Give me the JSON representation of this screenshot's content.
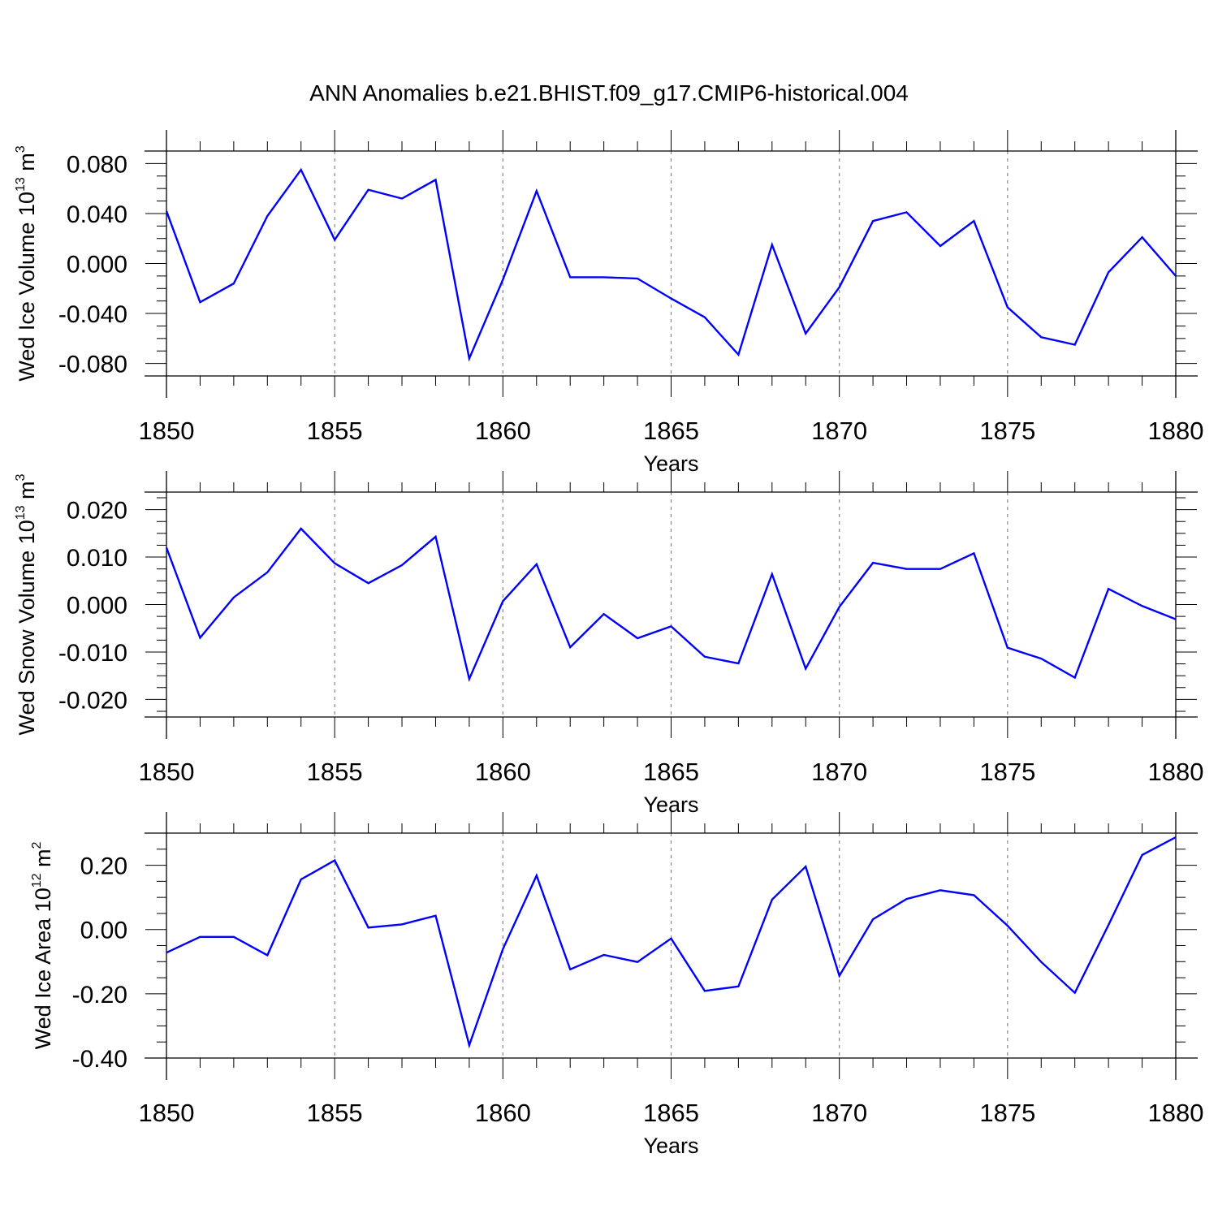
{
  "title": "ANN Anomalies b.e21.BHIST.f09_g17.CMIP6-historical.004",
  "colors": {
    "line": "#0000ff",
    "axis": "#000000",
    "grid": "#888888",
    "background": "#ffffff"
  },
  "chart_data": [
    {
      "type": "line",
      "title": "ANN Anomalies b.e21.BHIST.f09_g17.CMIP6-historical.004",
      "xlabel": "Years",
      "ylabel": {
        "base": "Wed Ice Volume 10",
        "exp": "13",
        "unit": " m",
        "unit_exp": "3"
      },
      "xlim": [
        1850,
        1880
      ],
      "ylim": [
        -0.09,
        0.09
      ],
      "xticks": [
        1850,
        1855,
        1860,
        1865,
        1870,
        1875,
        1880
      ],
      "xtick_labels": [
        "1850",
        "1855",
        "1860",
        "1865",
        "1870",
        "1875",
        "1880"
      ],
      "yticks": [
        -0.08,
        -0.04,
        0.0,
        0.04,
        0.08
      ],
      "ytick_labels": [
        "-0.080",
        "-0.040",
        "0.000",
        "0.040",
        "0.080"
      ],
      "yminor_step": 0.01,
      "grid": "vertical dashed at major x ticks",
      "series": [
        {
          "x": [
            1850,
            1851,
            1852,
            1853,
            1854,
            1855,
            1856,
            1857,
            1858,
            1859,
            1860,
            1861,
            1862,
            1863,
            1864,
            1865,
            1866,
            1867,
            1868,
            1869,
            1870,
            1871,
            1872,
            1873,
            1874,
            1875,
            1876,
            1877,
            1878,
            1879,
            1880
          ],
          "y": [
            0.042,
            -0.031,
            -0.016,
            0.038,
            0.075,
            0.019,
            0.059,
            0.052,
            0.067,
            -0.076,
            -0.013,
            0.058,
            -0.011,
            -0.011,
            -0.012,
            -0.028,
            -0.043,
            -0.073,
            0.015,
            -0.056,
            -0.019,
            0.034,
            0.041,
            0.014,
            0.034,
            -0.035,
            -0.059,
            -0.065,
            -0.007,
            0.021,
            -0.01
          ]
        }
      ]
    },
    {
      "type": "line",
      "xlabel": "Years",
      "ylabel": {
        "base": "Wed Snow Volume 10",
        "exp": "13",
        "unit": " m",
        "unit_exp": "3"
      },
      "xlim": [
        1850,
        1880
      ],
      "ylim": [
        -0.0237,
        0.0237
      ],
      "xticks": [
        1850,
        1855,
        1860,
        1865,
        1870,
        1875,
        1880
      ],
      "xtick_labels": [
        "1850",
        "1855",
        "1860",
        "1865",
        "1870",
        "1875",
        "1880"
      ],
      "yticks": [
        -0.02,
        -0.01,
        0.0,
        0.01,
        0.02
      ],
      "ytick_labels": [
        "-0.020",
        "-0.010",
        "0.000",
        "0.010",
        "0.020"
      ],
      "yminor_step": 0.0025,
      "grid": "vertical dashed at major x ticks",
      "series": [
        {
          "x": [
            1850,
            1851,
            1852,
            1853,
            1854,
            1855,
            1856,
            1857,
            1858,
            1859,
            1860,
            1861,
            1862,
            1863,
            1864,
            1865,
            1866,
            1867,
            1868,
            1869,
            1870,
            1871,
            1872,
            1873,
            1874,
            1875,
            1876,
            1877,
            1878,
            1879,
            1880
          ],
          "y": [
            0.012,
            -0.007,
            0.0015,
            0.0068,
            0.016,
            0.0087,
            0.0045,
            0.0083,
            0.0143,
            -0.0157,
            0.0007,
            0.0085,
            -0.009,
            -0.002,
            -0.0071,
            -0.0046,
            -0.011,
            -0.0124,
            0.0064,
            -0.0135,
            -0.0005,
            0.0088,
            0.0075,
            0.0075,
            0.0108,
            -0.0091,
            -0.0114,
            -0.0154,
            0.0033,
            -0.0003,
            -0.0031
          ]
        }
      ]
    },
    {
      "type": "line",
      "xlabel": "Years",
      "ylabel": {
        "base": "Wed Ice Area 10",
        "exp": "12",
        "unit": " m",
        "unit_exp": "2"
      },
      "xlim": [
        1850,
        1880
      ],
      "ylim": [
        -0.4,
        0.3
      ],
      "xticks": [
        1850,
        1855,
        1860,
        1865,
        1870,
        1875,
        1880
      ],
      "xtick_labels": [
        "1850",
        "1855",
        "1860",
        "1865",
        "1870",
        "1875",
        "1880"
      ],
      "yticks": [
        -0.4,
        -0.2,
        0.0,
        0.2
      ],
      "ytick_labels": [
        "-0.40",
        "-0.20",
        "0.00",
        "0.20"
      ],
      "yminor_step": 0.05,
      "grid": "vertical dashed at major x ticks",
      "series": [
        {
          "x": [
            1850,
            1851,
            1852,
            1853,
            1854,
            1855,
            1856,
            1857,
            1858,
            1859,
            1860,
            1861,
            1862,
            1863,
            1864,
            1865,
            1866,
            1867,
            1868,
            1869,
            1870,
            1871,
            1872,
            1873,
            1874,
            1875,
            1876,
            1877,
            1878,
            1879,
            1880
          ],
          "y": [
            -0.072,
            -0.023,
            -0.023,
            -0.08,
            0.156,
            0.215,
            0.006,
            0.016,
            0.043,
            -0.36,
            -0.061,
            0.168,
            -0.124,
            -0.079,
            -0.101,
            -0.028,
            -0.191,
            -0.177,
            0.093,
            0.196,
            -0.144,
            0.032,
            0.095,
            0.122,
            0.107,
            0.012,
            -0.101,
            -0.197,
            0.014,
            0.232,
            0.287
          ]
        }
      ]
    }
  ]
}
